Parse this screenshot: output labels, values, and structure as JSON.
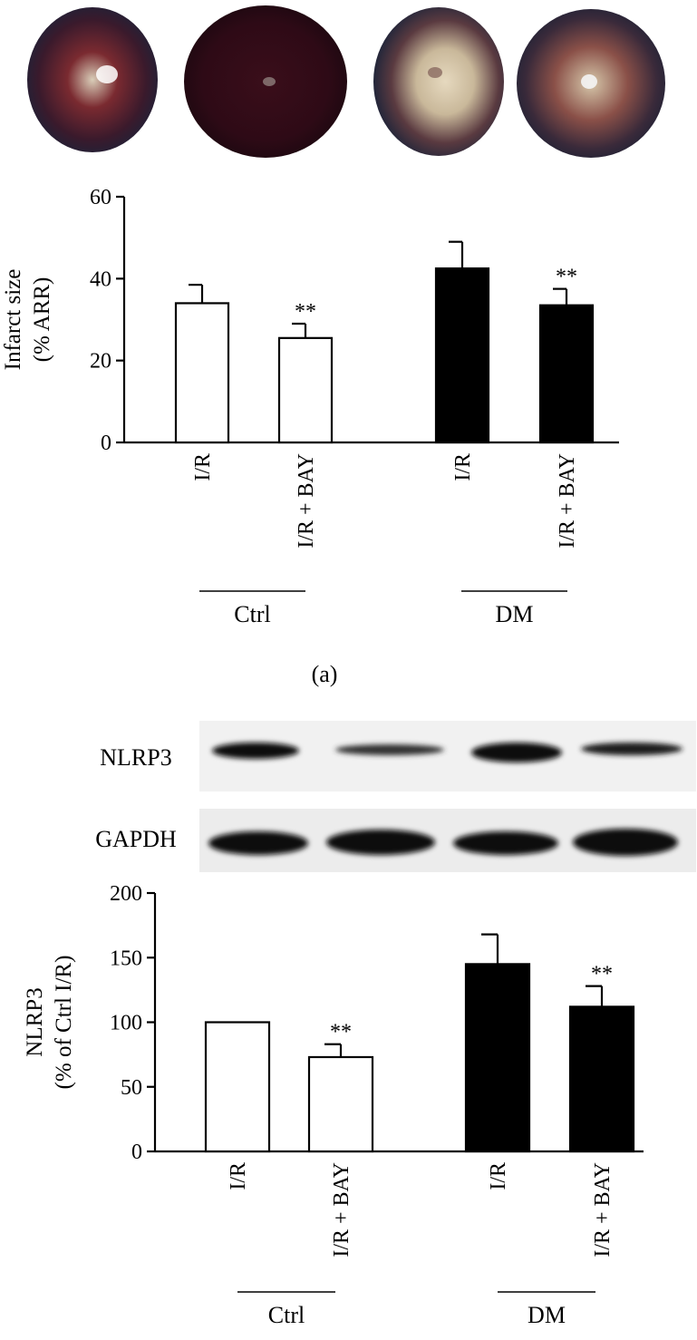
{
  "panel_label": "(a)",
  "heart_images": [
    "heart-ctrl-ir",
    "heart-ctrl-ir-bay",
    "heart-dm-ir",
    "heart-dm-ir-bay"
  ],
  "blot": {
    "labels": [
      "NLRP3",
      "GAPDH"
    ]
  },
  "chart_data": [
    {
      "type": "bar",
      "ylabel_lines": [
        "Infarct size",
        "(% ARR)"
      ],
      "ylim": [
        0,
        60
      ],
      "yticks": [
        0,
        20,
        40,
        60
      ],
      "categories": [
        "I/R",
        "I/R + BAY",
        "I/R",
        "I/R + BAY"
      ],
      "groups": [
        "Ctrl",
        "DM"
      ],
      "values": [
        34,
        25.5,
        42.5,
        33.5
      ],
      "errors": [
        4.5,
        3.5,
        6.5,
        4
      ],
      "significance": [
        "",
        "**",
        "",
        "**"
      ],
      "colors": [
        "#ffffff",
        "#ffffff",
        "#000000",
        "#000000"
      ]
    },
    {
      "type": "bar",
      "ylabel_lines": [
        "NLRP3",
        "(% of Ctrl I/R)"
      ],
      "ylim": [
        0,
        200
      ],
      "yticks": [
        0,
        50,
        100,
        150,
        200
      ],
      "categories": [
        "I/R",
        "I/R + BAY",
        "I/R",
        "I/R + BAY"
      ],
      "groups": [
        "Ctrl",
        "DM"
      ],
      "values": [
        100,
        73,
        145,
        112
      ],
      "errors": [
        0,
        10,
        23,
        16
      ],
      "significance": [
        "",
        "**",
        "",
        "**"
      ],
      "colors": [
        "#ffffff",
        "#ffffff",
        "#000000",
        "#000000"
      ]
    }
  ]
}
